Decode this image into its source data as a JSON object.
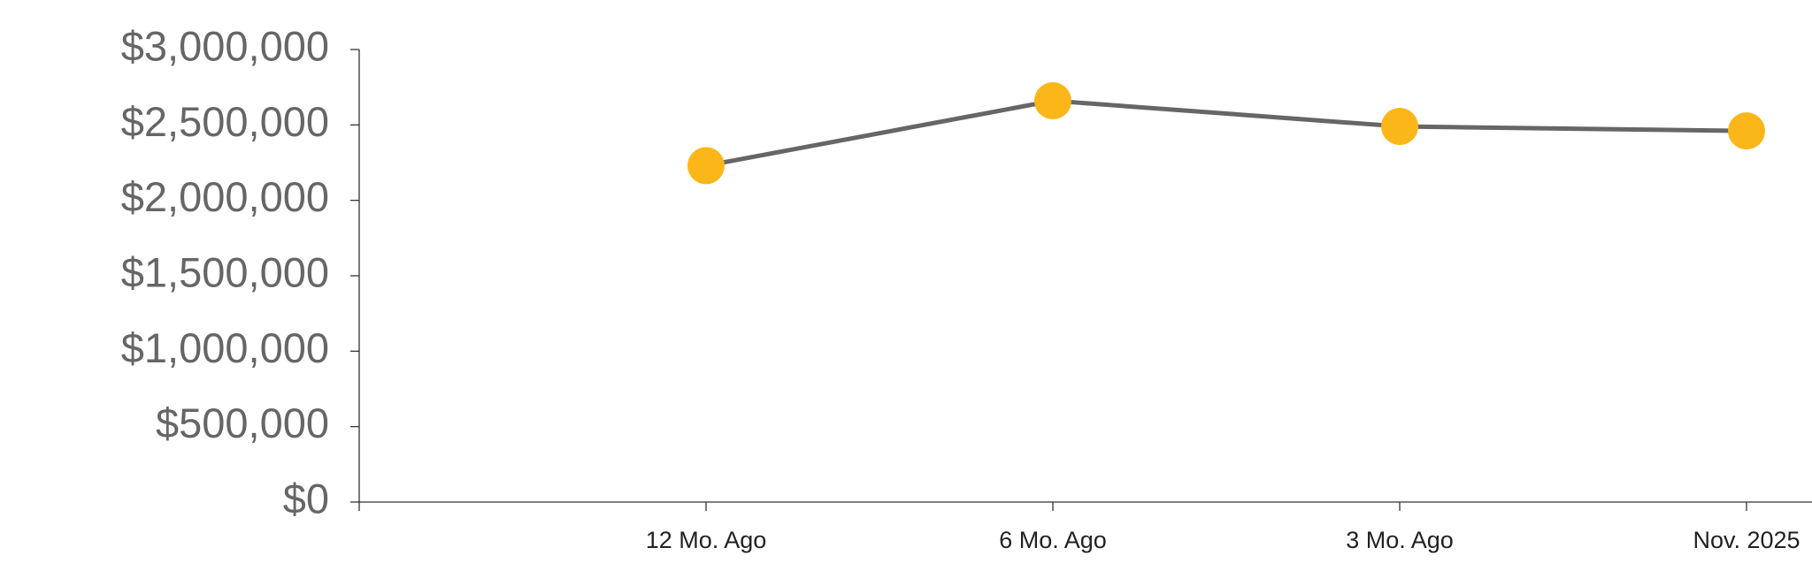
{
  "chart_data": {
    "type": "line",
    "categories": [
      null,
      "12 Mo. Ago",
      "6 Mo. Ago",
      "3 Mo. Ago",
      "Nov. 2025"
    ],
    "values": [
      null,
      2230000,
      2660000,
      2490000,
      2460000
    ],
    "color": "#666666",
    "marker_color": "#fbb619",
    "ylim": [
      0,
      3000000
    ],
    "yticks": [
      {
        "value": 0,
        "label": "$0"
      },
      {
        "value": 500000,
        "label": "$500,000"
      },
      {
        "value": 1000000,
        "label": "$1,000,000"
      },
      {
        "value": 1500000,
        "label": "$1,500,000"
      },
      {
        "value": 2000000,
        "label": "$2,000,000"
      },
      {
        "value": 2500000,
        "label": "$2,500,000"
      },
      {
        "value": 3000000,
        "label": "$3,000,000"
      }
    ]
  }
}
